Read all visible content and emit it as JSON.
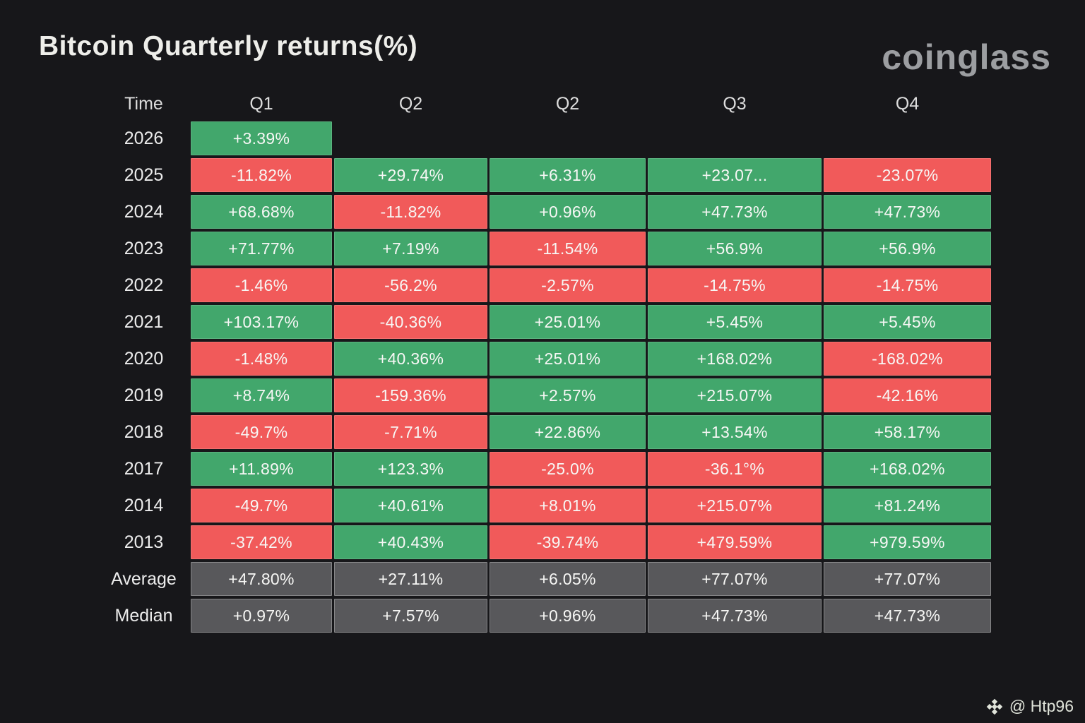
{
  "title": "Bitcoin Quarterly returns(%)",
  "brand": "coinglass",
  "watermark": {
    "icon": "binance-diamond-icon",
    "handle": "@ Htp96"
  },
  "colors": {
    "background": "#17171a",
    "positive_green": "#42a76c",
    "negative_red": "#f15a5a",
    "summary_gray": "#58585b",
    "text": "#f7f7f5",
    "brand_gray": "#9c9ea1"
  },
  "table": {
    "headers": [
      "Time",
      "Q1",
      "Q2",
      "Q2",
      "Q3",
      "Q4"
    ],
    "rows": [
      {
        "label": "2026",
        "cells": [
          {
            "text": "+3.39%",
            "color": "green"
          },
          null,
          null,
          null,
          null
        ]
      },
      {
        "label": "2025",
        "cells": [
          {
            "text": "-11.82%",
            "color": "red"
          },
          {
            "text": "+29.74%",
            "color": "green"
          },
          {
            "text": "+6.31%",
            "color": "green"
          },
          {
            "text": "+23.07...",
            "color": "green"
          },
          {
            "text": "-23.07%",
            "color": "red"
          }
        ]
      },
      {
        "label": "2024",
        "cells": [
          {
            "text": "+68.68%",
            "color": "green"
          },
          {
            "text": "-11.82%",
            "color": "red"
          },
          {
            "text": "+0.96%",
            "color": "green"
          },
          {
            "text": "+47.73%",
            "color": "green"
          },
          {
            "text": "+47.73%",
            "color": "green"
          }
        ]
      },
      {
        "label": "2023",
        "cells": [
          {
            "text": "+71.77%",
            "color": "green"
          },
          {
            "text": "+7.19%",
            "color": "green"
          },
          {
            "text": "-11.54%",
            "color": "red"
          },
          {
            "text": "+56.9%",
            "color": "green"
          },
          {
            "text": "+56.9%",
            "color": "green"
          }
        ]
      },
      {
        "label": "2022",
        "cells": [
          {
            "text": "-1.46%",
            "color": "red"
          },
          {
            "text": "-56.2%",
            "color": "red"
          },
          {
            "text": "-2.57%",
            "color": "red"
          },
          {
            "text": "-14.75%",
            "color": "red"
          },
          {
            "text": "-14.75%",
            "color": "red"
          }
        ]
      },
      {
        "label": "2021",
        "cells": [
          {
            "text": "+103.17%",
            "color": "green"
          },
          {
            "text": "-40.36%",
            "color": "red"
          },
          {
            "text": "+25.01%",
            "color": "green"
          },
          {
            "text": "+5.45%",
            "color": "green"
          },
          {
            "text": "+5.45%",
            "color": "green"
          }
        ]
      },
      {
        "label": "2020",
        "cells": [
          {
            "text": "-1.48%",
            "color": "red"
          },
          {
            "text": "+40.36%",
            "color": "green"
          },
          {
            "text": "+25.01%",
            "color": "green"
          },
          {
            "text": "+168.02%",
            "color": "green"
          },
          {
            "text": "-168.02%",
            "color": "red"
          }
        ]
      },
      {
        "label": "2019",
        "cells": [
          {
            "text": "+8.74%",
            "color": "green"
          },
          {
            "text": "-159.36%",
            "color": "red"
          },
          {
            "text": "+2.57%",
            "color": "green"
          },
          {
            "text": "+215.07%",
            "color": "green"
          },
          {
            "text": "-42.16%",
            "color": "red"
          }
        ]
      },
      {
        "label": "2018",
        "cells": [
          {
            "text": "-49.7%",
            "color": "red"
          },
          {
            "text": "-7.71%",
            "color": "red"
          },
          {
            "text": "+22.86%",
            "color": "green"
          },
          {
            "text": "+13.54%",
            "color": "green"
          },
          {
            "text": "+58.17%",
            "color": "green"
          }
        ]
      },
      {
        "label": "2017",
        "cells": [
          {
            "text": "+11.89%",
            "color": "green"
          },
          {
            "text": "+123.3%",
            "color": "green"
          },
          {
            "text": "-25.0%",
            "color": "red"
          },
          {
            "text": "-36.1°%",
            "color": "red"
          },
          {
            "text": "+168.02%",
            "color": "green"
          }
        ]
      },
      {
        "label": "2014",
        "cells": [
          {
            "text": "-49.7%",
            "color": "red"
          },
          {
            "text": "+40.61%",
            "color": "green"
          },
          {
            "text": "+8.01%",
            "color": "red"
          },
          {
            "text": "+215.07%",
            "color": "red"
          },
          {
            "text": "+81.24%",
            "color": "green"
          }
        ]
      },
      {
        "label": "2013",
        "cells": [
          {
            "text": "-37.42%",
            "color": "red"
          },
          {
            "text": "+40.43%",
            "color": "green"
          },
          {
            "text": "-39.74%",
            "color": "red"
          },
          {
            "text": "+479.59%",
            "color": "red"
          },
          {
            "text": "+979.59%",
            "color": "green"
          }
        ]
      },
      {
        "label": "Average",
        "cells": [
          {
            "text": "+47.80%",
            "color": "gray"
          },
          {
            "text": "+27.11%",
            "color": "gray"
          },
          {
            "text": "+6.05%",
            "color": "gray"
          },
          {
            "text": "+77.07%",
            "color": "gray"
          },
          {
            "text": "+77.07%",
            "color": "gray"
          }
        ]
      },
      {
        "label": "Median",
        "cells": [
          {
            "text": "+0.97%",
            "color": "gray"
          },
          {
            "text": "+7.57%",
            "color": "gray"
          },
          {
            "text": "+0.96%",
            "color": "gray"
          },
          {
            "text": "+47.73%",
            "color": "gray"
          },
          {
            "text": "+47.73%",
            "color": "gray"
          }
        ]
      }
    ]
  },
  "chart_data": {
    "type": "heatmap",
    "title": "Bitcoin Quarterly returns(%)",
    "columns": [
      "Q1",
      "Q2",
      "Q2",
      "Q3",
      "Q4"
    ],
    "row_labels": [
      "2026",
      "2025",
      "2024",
      "2023",
      "2022",
      "2021",
      "2020",
      "2019",
      "2018",
      "2017",
      "2014",
      "2013",
      "Average",
      "Median"
    ],
    "values": [
      [
        3.39,
        null,
        null,
        null,
        null
      ],
      [
        -11.82,
        29.74,
        6.31,
        23.07,
        -23.07
      ],
      [
        68.68,
        -11.82,
        0.96,
        47.73,
        47.73
      ],
      [
        71.77,
        7.19,
        -11.54,
        56.9,
        56.9
      ],
      [
        -1.46,
        -56.2,
        -2.57,
        -14.75,
        -14.75
      ],
      [
        103.17,
        -40.36,
        25.01,
        5.45,
        5.45
      ],
      [
        -1.48,
        40.36,
        25.01,
        168.02,
        -168.02
      ],
      [
        8.74,
        -159.36,
        2.57,
        215.07,
        -42.16
      ],
      [
        -49.7,
        -7.71,
        22.86,
        13.54,
        58.17
      ],
      [
        11.89,
        123.3,
        -25.0,
        -36.1,
        168.02
      ],
      [
        -49.7,
        40.61,
        8.01,
        215.07,
        81.24
      ],
      [
        -37.42,
        40.43,
        -39.74,
        479.59,
        979.59
      ],
      [
        47.8,
        27.11,
        6.05,
        77.07,
        77.07
      ],
      [
        0.97,
        7.57,
        0.96,
        47.73,
        47.73
      ]
    ],
    "legend_position": "none",
    "grid": false,
    "color_coding": "green = gain, red = loss, gray = summary rows"
  }
}
